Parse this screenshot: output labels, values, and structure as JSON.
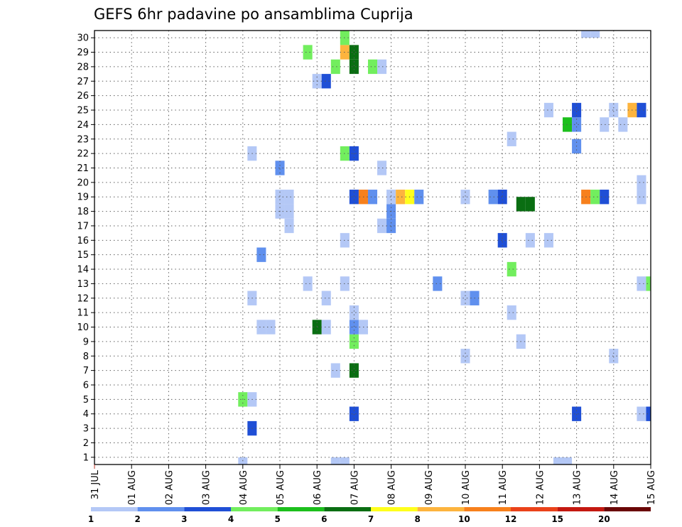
{
  "chart_data": {
    "type": "heatmap",
    "title": "GEFS 6hr padavine po ansamblima Cuprija",
    "xlabel": "",
    "ylabel": "",
    "x_tick_labels": [
      "31 JUL",
      "01 AUG",
      "02 AUG",
      "03 AUG",
      "04 AUG",
      "05 AUG",
      "06 AUG",
      "07 AUG",
      "08 AUG",
      "09 AUG",
      "10 AUG",
      "11 AUG",
      "12 AUG",
      "13 AUG",
      "14 AUG",
      "15 AUG"
    ],
    "y_tick_labels": [
      "1",
      "2",
      "3",
      "4",
      "5",
      "6",
      "7",
      "8",
      "9",
      "10",
      "11",
      "12",
      "13",
      "14",
      "15",
      "16",
      "17",
      "18",
      "19",
      "20",
      "21",
      "22",
      "23",
      "24",
      "25",
      "26",
      "27",
      "28",
      "29",
      "30"
    ],
    "x_range_days": [
      0,
      15
    ],
    "y_range": [
      0.5,
      30.5
    ],
    "grid": true,
    "colorbar": {
      "placement": "bottom",
      "colors": [
        "#b4c8f6",
        "#6090ee",
        "#1f4fd6",
        "#72ee5e",
        "#1cbf1c",
        "#0a6e12",
        "#ffff1c",
        "#fdb43e",
        "#f7801c",
        "#ea421a",
        "#c41810",
        "#6a0606"
      ],
      "labels": [
        "1",
        "2",
        "3",
        "4",
        "5",
        "6",
        "7",
        "8",
        "10",
        "12",
        "15",
        "20"
      ]
    },
    "cells": [
      {
        "day": 4.0,
        "member": 0.5,
        "bin": 0
      },
      {
        "day": 6.5,
        "member": 0.5,
        "bin": 0
      },
      {
        "day": 6.75,
        "member": 0.5,
        "bin": 0
      },
      {
        "day": 12.5,
        "member": 0.5,
        "bin": 0
      },
      {
        "day": 12.75,
        "member": 0.5,
        "bin": 0
      },
      {
        "day": 4.25,
        "member": 3,
        "bin": 2
      },
      {
        "day": 7.0,
        "member": 4,
        "bin": 2
      },
      {
        "day": 13.0,
        "member": 4,
        "bin": 2
      },
      {
        "day": 14.75,
        "member": 4,
        "bin": 0
      },
      {
        "day": 15.0,
        "member": 4,
        "bin": 2
      },
      {
        "day": 4.0,
        "member": 5,
        "bin": 3
      },
      {
        "day": 4.25,
        "member": 5,
        "bin": 0
      },
      {
        "day": 6.5,
        "member": 7,
        "bin": 0
      },
      {
        "day": 7.0,
        "member": 7,
        "bin": 5
      },
      {
        "day": 10.0,
        "member": 8,
        "bin": 0
      },
      {
        "day": 14.0,
        "member": 8,
        "bin": 0
      },
      {
        "day": 7.0,
        "member": 9,
        "bin": 3
      },
      {
        "day": 11.5,
        "member": 9,
        "bin": 0
      },
      {
        "day": 4.5,
        "member": 10,
        "bin": 0
      },
      {
        "day": 4.75,
        "member": 10,
        "bin": 0
      },
      {
        "day": 6.0,
        "member": 10,
        "bin": 5
      },
      {
        "day": 6.25,
        "member": 10,
        "bin": 0
      },
      {
        "day": 7.0,
        "member": 10,
        "bin": 1
      },
      {
        "day": 7.25,
        "member": 10,
        "bin": 0
      },
      {
        "day": 7.0,
        "member": 11,
        "bin": 0
      },
      {
        "day": 11.25,
        "member": 11,
        "bin": 0
      },
      {
        "day": 4.25,
        "member": 12,
        "bin": 0
      },
      {
        "day": 6.25,
        "member": 12,
        "bin": 0
      },
      {
        "day": 10.0,
        "member": 12,
        "bin": 0
      },
      {
        "day": 10.25,
        "member": 12,
        "bin": 1
      },
      {
        "day": 5.75,
        "member": 13,
        "bin": 0
      },
      {
        "day": 6.75,
        "member": 13,
        "bin": 0
      },
      {
        "day": 9.25,
        "member": 13,
        "bin": 1
      },
      {
        "day": 14.75,
        "member": 13,
        "bin": 0
      },
      {
        "day": 15.0,
        "member": 13,
        "bin": 3
      },
      {
        "day": 11.25,
        "member": 14,
        "bin": 3
      },
      {
        "day": 4.5,
        "member": 15,
        "bin": 1
      },
      {
        "day": 6.75,
        "member": 16,
        "bin": 0
      },
      {
        "day": 11.0,
        "member": 16,
        "bin": 2
      },
      {
        "day": 11.75,
        "member": 16,
        "bin": 0
      },
      {
        "day": 12.25,
        "member": 16,
        "bin": 0
      },
      {
        "day": 5.25,
        "member": 17,
        "bin": 0
      },
      {
        "day": 7.75,
        "member": 17,
        "bin": 0
      },
      {
        "day": 8.0,
        "member": 17,
        "bin": 1
      },
      {
        "day": 5.0,
        "member": 18,
        "bin": 0
      },
      {
        "day": 5.25,
        "member": 18,
        "bin": 0
      },
      {
        "day": 8.0,
        "member": 18,
        "bin": 1
      },
      {
        "day": 5.0,
        "member": 19,
        "bin": 0
      },
      {
        "day": 5.25,
        "member": 19,
        "bin": 0
      },
      {
        "day": 7.0,
        "member": 19,
        "bin": 2
      },
      {
        "day": 7.25,
        "member": 19,
        "bin": 8
      },
      {
        "day": 7.5,
        "member": 19,
        "bin": 1
      },
      {
        "day": 8.0,
        "member": 19,
        "bin": 0
      },
      {
        "day": 8.25,
        "member": 19,
        "bin": 7
      },
      {
        "day": 8.5,
        "member": 19,
        "bin": 6
      },
      {
        "day": 8.75,
        "member": 19,
        "bin": 1
      },
      {
        "day": 10.0,
        "member": 19,
        "bin": 0
      },
      {
        "day": 10.75,
        "member": 19,
        "bin": 1
      },
      {
        "day": 11.0,
        "member": 19,
        "bin": 2
      },
      {
        "day": 11.5,
        "member": 18.5,
        "bin": 5
      },
      {
        "day": 11.75,
        "member": 18.5,
        "bin": 5
      },
      {
        "day": 13.25,
        "member": 19,
        "bin": 8
      },
      {
        "day": 13.5,
        "member": 19,
        "bin": 3
      },
      {
        "day": 13.75,
        "member": 19,
        "bin": 2
      },
      {
        "day": 14.75,
        "member": 19,
        "bin": 0
      },
      {
        "day": 14.75,
        "member": 20,
        "bin": 0
      },
      {
        "day": 5.0,
        "member": 21,
        "bin": 1
      },
      {
        "day": 7.75,
        "member": 21,
        "bin": 0
      },
      {
        "day": 4.25,
        "member": 22,
        "bin": 0
      },
      {
        "day": 6.75,
        "member": 22,
        "bin": 3
      },
      {
        "day": 7.0,
        "member": 22,
        "bin": 2
      },
      {
        "day": 11.25,
        "member": 23,
        "bin": 0
      },
      {
        "day": 13.0,
        "member": 22.5,
        "bin": 1
      },
      {
        "day": 12.75,
        "member": 24,
        "bin": 4
      },
      {
        "day": 13.0,
        "member": 24,
        "bin": 1
      },
      {
        "day": 13.75,
        "member": 24,
        "bin": 0
      },
      {
        "day": 14.25,
        "member": 24,
        "bin": 0
      },
      {
        "day": 12.25,
        "member": 25,
        "bin": 0
      },
      {
        "day": 13.0,
        "member": 25,
        "bin": 2
      },
      {
        "day": 14.0,
        "member": 25,
        "bin": 0
      },
      {
        "day": 14.5,
        "member": 25,
        "bin": 7
      },
      {
        "day": 14.75,
        "member": 25,
        "bin": 2
      },
      {
        "day": 6.0,
        "member": 27,
        "bin": 0
      },
      {
        "day": 6.25,
        "member": 27,
        "bin": 2
      },
      {
        "day": 6.5,
        "member": 28,
        "bin": 3
      },
      {
        "day": 7.0,
        "member": 28,
        "bin": 5
      },
      {
        "day": 7.5,
        "member": 28,
        "bin": 3
      },
      {
        "day": 7.75,
        "member": 28,
        "bin": 0
      },
      {
        "day": 5.75,
        "member": 29,
        "bin": 3
      },
      {
        "day": 6.75,
        "member": 29,
        "bin": 7
      },
      {
        "day": 7.0,
        "member": 29,
        "bin": 5
      },
      {
        "day": 6.75,
        "member": 30,
        "bin": 3
      },
      {
        "day": 13.25,
        "member": 30.5,
        "bin": 0
      },
      {
        "day": 13.5,
        "member": 30.5,
        "bin": 0
      }
    ]
  }
}
